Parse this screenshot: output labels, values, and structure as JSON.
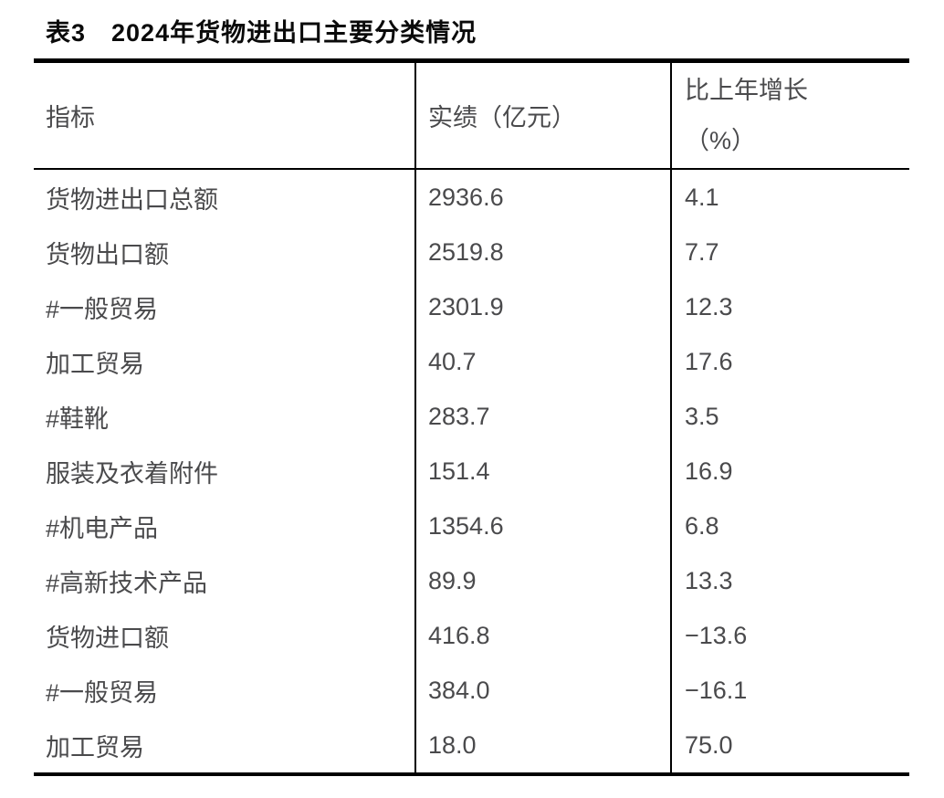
{
  "page": {
    "title": "表3　2024年货物进出口主要分类情况"
  },
  "chart_data": {
    "type": "table",
    "title": "表3　2024年货物进出口主要分类情况",
    "columns": [
      "指标",
      "实绩（亿元）",
      "比上年增长（%）"
    ],
    "header": {
      "col1": "指标",
      "col2": "实绩（亿元）",
      "col3_line1": "比上年增长",
      "col3_line2": "（%）"
    },
    "rows": [
      {
        "indicator": "货物进出口总额",
        "value": "2936.6",
        "growth": "4.1"
      },
      {
        "indicator": "货物出口额",
        "value": "2519.8",
        "growth": "7.7"
      },
      {
        "indicator": "#一般贸易",
        "value": "2301.9",
        "growth": "12.3"
      },
      {
        "indicator": "加工贸易",
        "value": "40.7",
        "growth": "17.6"
      },
      {
        "indicator": "#鞋靴",
        "value": "283.7",
        "growth": "3.5"
      },
      {
        "indicator": "服装及衣着附件",
        "value": "151.4",
        "growth": "16.9"
      },
      {
        "indicator": "#机电产品",
        "value": "1354.6",
        "growth": "6.8"
      },
      {
        "indicator": "#高新技术产品",
        "value": "89.9",
        "growth": "13.3"
      },
      {
        "indicator": "货物进口额",
        "value": "416.8",
        "growth": "−13.6"
      },
      {
        "indicator": "#一般贸易",
        "value": "384.0",
        "growth": "−16.1"
      },
      {
        "indicator": "加工贸易",
        "value": "18.0",
        "growth": "75.0"
      }
    ],
    "colors": {
      "text": "#4a4a4c",
      "title": "#0a0a0a",
      "border": "#000000",
      "background": "#ffffff"
    }
  }
}
